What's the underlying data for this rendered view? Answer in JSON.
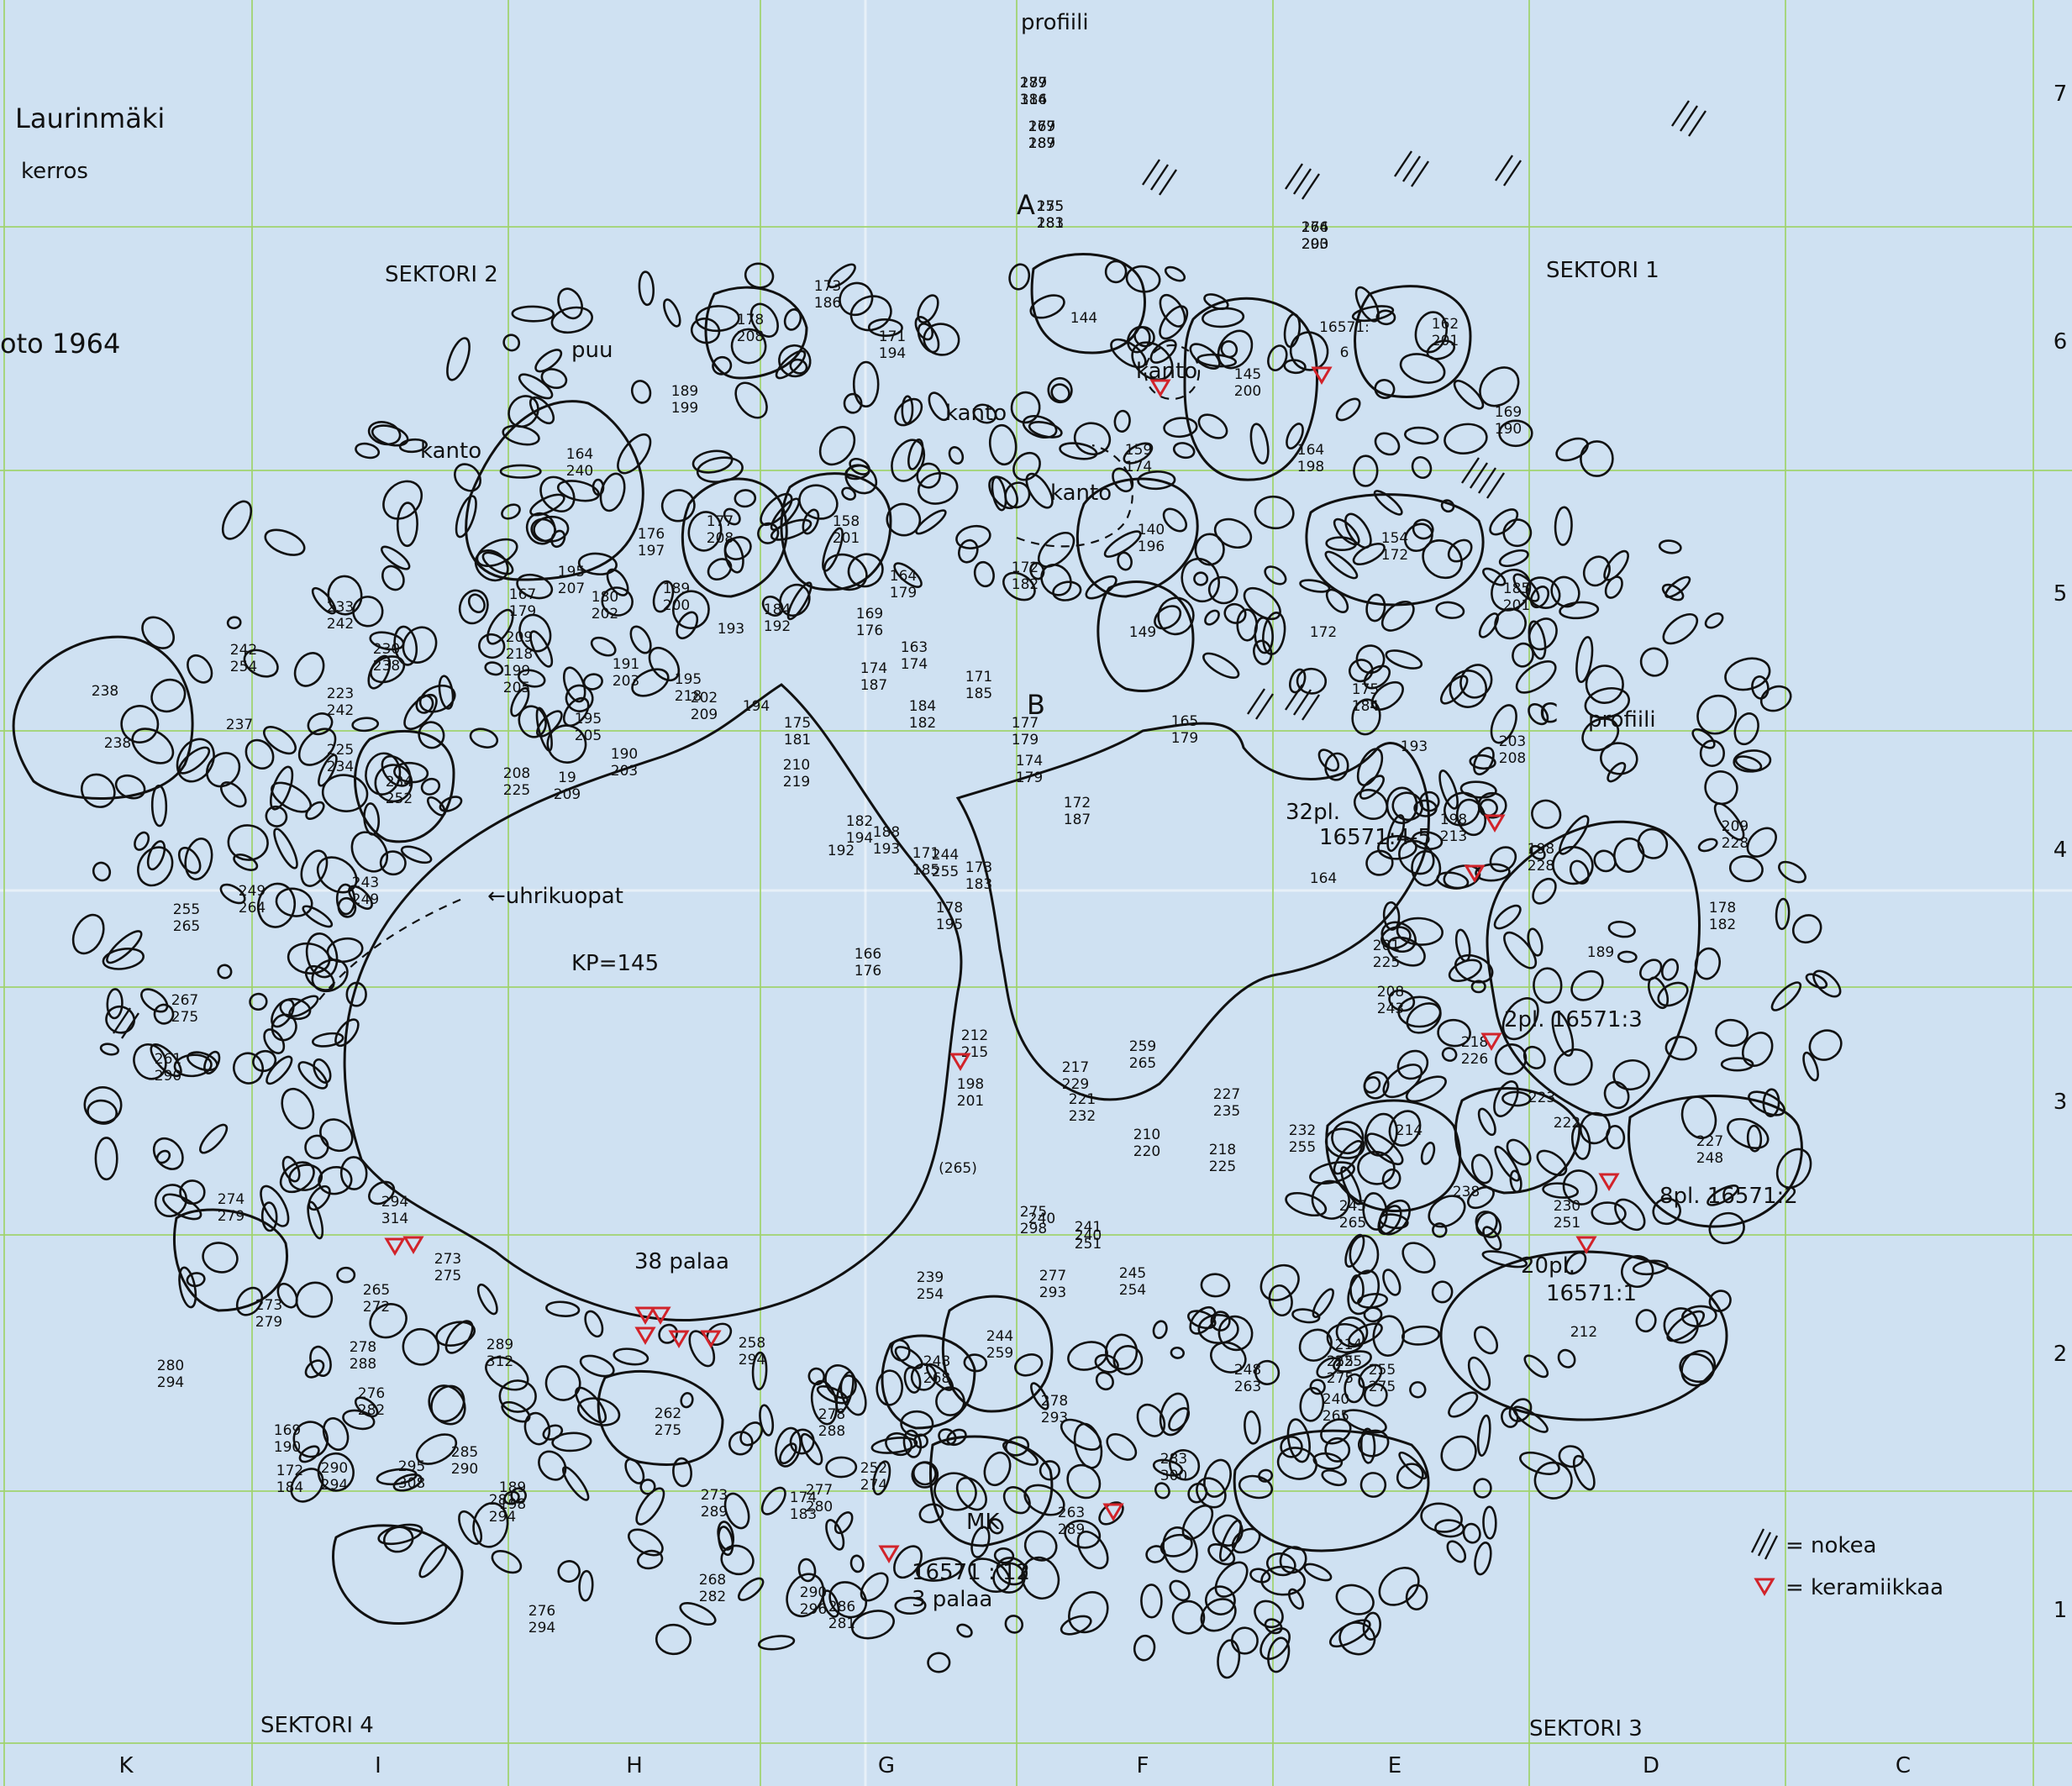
{
  "map": {
    "site_name": "Laurinmäki",
    "layer_label": "kerros",
    "excavation_label": "oto 1964",
    "colors": {
      "background": "#cfe1f2",
      "grid": "#9fd36b",
      "ink": "#111111",
      "ceramics": "#d2232a"
    }
  },
  "sectors": {
    "s1": "SEKTORI 1",
    "s2": "SEKTORI 2",
    "s3": "SEKTORI 3",
    "s4": "SEKTORI 4"
  },
  "profiles": {
    "top": "profiili",
    "c_side": "profiili"
  },
  "points": {
    "a": "A",
    "b": "B",
    "c": "C"
  },
  "features": {
    "puu": "puu",
    "kanto_1": "kanto",
    "kanto_2": "kanto",
    "kanto_3": "kanto",
    "kanto_4": "kanto",
    "uhrikuopat": "←uhrikuopat",
    "kp": "KP=145",
    "mk": "MK",
    "palaa_38": "38 palaa"
  },
  "find_notes": {
    "n1_a": "32pl.",
    "n1_b": "16571:4-5",
    "n2": "2pl. 16571:3",
    "n3": "8pl. 16571:2",
    "n4_a": "20pl.",
    "n4_b": "16571:1",
    "n5_a": "16571 : 12",
    "n5_b": "3 palaa",
    "n6_a": "16571:",
    "n6_b": "6"
  },
  "column_letters": [
    "K",
    "I",
    "H",
    "G",
    "F",
    "E",
    "D",
    "C"
  ],
  "row_numbers": [
    "7",
    "6",
    "5",
    "4",
    "3",
    "2",
    "1"
  ],
  "legend": {
    "soot_label": "= nokea",
    "ceramics_label": "= keramiikkaa"
  },
  "stone_labels": [
    [
      "177",
      "186"
    ],
    [
      "167",
      "189"
    ],
    [
      "155",
      "181"
    ],
    [
      "164",
      "200"
    ],
    [
      "162",
      "201"
    ],
    [
      "145",
      "200"
    ],
    [
      "144"
    ],
    [
      "173",
      "186"
    ],
    [
      "178",
      "208"
    ],
    [
      "171",
      "194"
    ],
    [
      "189",
      "199"
    ],
    [
      "164",
      "240"
    ],
    [
      "177",
      "208"
    ],
    [
      "158",
      "201"
    ],
    [
      "159",
      "174"
    ],
    [
      "140",
      "196"
    ],
    [
      "154",
      "172"
    ],
    [
      "164",
      "198"
    ],
    [
      "169",
      "190"
    ],
    [
      "149"
    ],
    [
      "172"
    ],
    [
      "185",
      "201"
    ],
    [
      "175",
      "184"
    ],
    [
      "238"
    ],
    [
      "238"
    ],
    [
      "242",
      "254"
    ],
    [
      "230",
      "238"
    ],
    [
      "233",
      "242"
    ],
    [
      "223",
      "242"
    ],
    [
      "237"
    ],
    [
      "225",
      "234"
    ],
    [
      "234",
      "252"
    ],
    [
      "199",
      "205"
    ],
    [
      "191",
      "203"
    ],
    [
      "180",
      "202"
    ],
    [
      "189",
      "200"
    ],
    [
      "195",
      "205"
    ],
    [
      "208",
      "225"
    ],
    [
      "19",
      "209"
    ],
    [
      "193"
    ],
    [
      "184",
      "192"
    ],
    [
      "169",
      "176"
    ],
    [
      "174",
      "187"
    ],
    [
      "173",
      "183"
    ],
    [
      "178",
      "195"
    ],
    [
      "171",
      "185"
    ],
    [
      "172",
      "187"
    ],
    [
      "174",
      "179"
    ],
    [
      "177",
      "179"
    ],
    [
      "165",
      "179"
    ],
    [
      "193"
    ],
    [
      "203",
      "208"
    ],
    [
      "198",
      "213"
    ],
    [
      "198",
      "228"
    ],
    [
      "209",
      "228"
    ],
    [
      "189"
    ],
    [
      "164"
    ],
    [
      "201",
      "225"
    ],
    [
      "208",
      "243"
    ],
    [
      "218",
      "226"
    ],
    [
      "223"
    ],
    [
      "214"
    ],
    [
      "222"
    ],
    [
      "227",
      "248"
    ],
    [
      "238"
    ],
    [
      "230",
      "251"
    ],
    [
      "212"
    ],
    [
      "240"
    ],
    [
      "255",
      "275"
    ],
    [
      "249",
      "264"
    ],
    [
      "243",
      "249"
    ],
    [
      "255",
      "265"
    ],
    [
      "267",
      "275"
    ],
    [
      "261",
      "290"
    ],
    [
      "274",
      "279"
    ],
    [
      "275",
      "298"
    ],
    [
      "294",
      "314"
    ],
    [
      "273",
      "275"
    ],
    [
      "265",
      "272"
    ],
    [
      "273",
      "279"
    ],
    [
      "280",
      "294"
    ],
    [
      "289",
      "312"
    ],
    [
      "262",
      "275"
    ],
    [
      "258",
      "294"
    ],
    [
      "248",
      "268"
    ],
    [
      "244",
      "259"
    ],
    [
      "252",
      "274"
    ],
    [
      "273",
      "289"
    ],
    [
      "268",
      "282"
    ],
    [
      "276",
      "294"
    ],
    [
      "290",
      "294"
    ],
    [
      "295",
      "308"
    ],
    [
      "278",
      "293"
    ],
    [
      "263",
      "289"
    ],
    [
      "283",
      "300"
    ],
    [
      "277",
      "293"
    ],
    [
      "245",
      "254"
    ],
    [
      "239",
      "254"
    ],
    [
      "241",
      "251"
    ],
    [
      "240"
    ],
    [
      "(265)"
    ],
    [
      "221",
      "232"
    ],
    [
      "227",
      "235"
    ],
    [
      "217",
      "229"
    ],
    [
      "212",
      "215"
    ],
    [
      "198",
      "201"
    ],
    [
      "210",
      "220"
    ],
    [
      "218",
      "225"
    ],
    [
      "232",
      "255"
    ],
    [
      "214",
      "225"
    ],
    [
      "240",
      "265"
    ],
    [
      "255",
      "275"
    ],
    [
      "248",
      "263"
    ],
    [
      "245",
      "265"
    ],
    [
      "259",
      "265"
    ],
    [
      "244",
      "255"
    ],
    [
      "172",
      "182"
    ],
    [
      "171",
      "185"
    ],
    [
      "163",
      "174"
    ],
    [
      "164",
      "179"
    ],
    [
      "166",
      "176"
    ],
    [
      "176",
      "197"
    ],
    [
      "167",
      "179"
    ],
    [
      "195",
      "207"
    ],
    [
      "209",
      "218"
    ],
    [
      "202",
      "209"
    ],
    [
      "194"
    ],
    [
      "195",
      "218"
    ],
    [
      "190",
      "203"
    ],
    [
      "192"
    ],
    [
      "210",
      "219"
    ],
    [
      "175",
      "181"
    ],
    [
      "184",
      "182"
    ],
    [
      "182",
      "194"
    ],
    [
      "188",
      "193"
    ],
    [
      "178",
      "182"
    ],
    [
      "174",
      "183"
    ],
    [
      "189",
      "198"
    ],
    [
      "169",
      "190"
    ],
    [
      "172",
      "184"
    ],
    [
      "276",
      "282"
    ],
    [
      "278",
      "288"
    ],
    [
      "281",
      "294"
    ],
    [
      "290",
      "296"
    ],
    [
      "286",
      "281"
    ],
    [
      "277",
      "280"
    ],
    [
      "278",
      "288"
    ],
    [
      "285",
      "290"
    ],
    [
      "289",
      "314"
    ],
    [
      "279",
      "287"
    ],
    [
      "275",
      "283"
    ],
    [
      "276",
      "293"
    ]
  ]
}
